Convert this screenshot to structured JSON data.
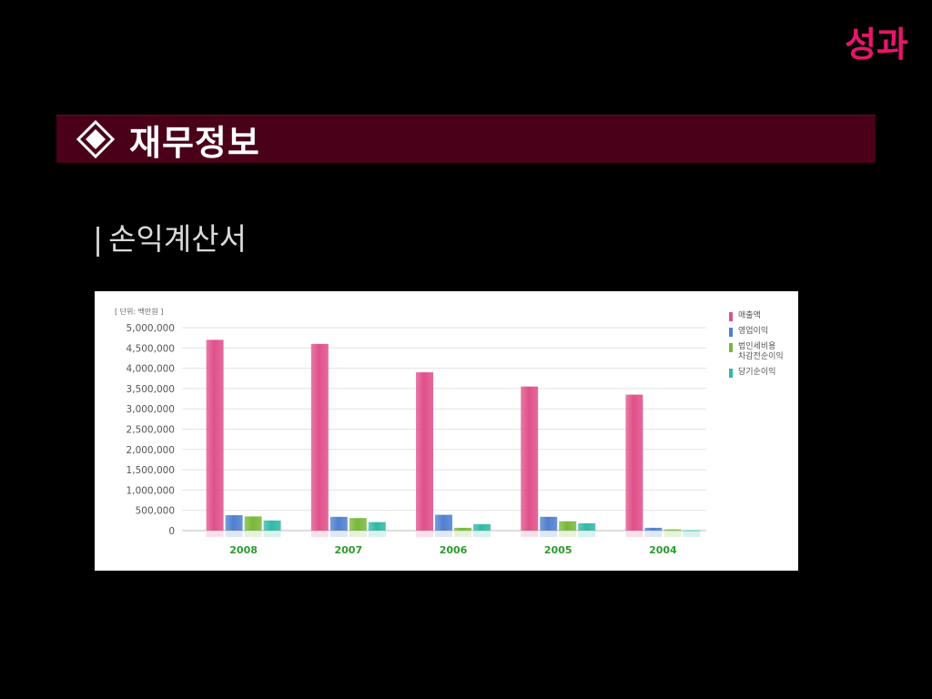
{
  "header": {
    "corner_title": "성과"
  },
  "section": {
    "icon": "diamond-icon",
    "title": "재무정보"
  },
  "subtitle": {
    "pipe": "|",
    "text": "손익계산서"
  },
  "colors": {
    "accent": "#e8166b",
    "section_bar": "#4a0019",
    "category_label": "#2e9a2e",
    "series": [
      "#e0508a",
      "#4f7fd0",
      "#78b83a",
      "#2fb9a6"
    ]
  },
  "chart_data": {
    "type": "bar",
    "unit_note": "[ 단위: 백만원 ]",
    "categories": [
      "2008",
      "2007",
      "2006",
      "2005",
      "2004"
    ],
    "series": [
      {
        "name": "매출액",
        "values": [
          4700000,
          4600000,
          3900000,
          3550000,
          3350000
        ]
      },
      {
        "name": "영업이익",
        "values": [
          380000,
          340000,
          390000,
          340000,
          70000
        ]
      },
      {
        "name": "법인세비용\n차감전순이익",
        "values": [
          350000,
          310000,
          70000,
          230000,
          30000
        ]
      },
      {
        "name": "당기순이익",
        "values": [
          250000,
          210000,
          160000,
          180000,
          10000
        ]
      }
    ],
    "yticks": [
      "0",
      "500,000",
      "1,000,000",
      "1,500,000",
      "2,000,000",
      "2,500,000",
      "3,000,000",
      "3,500,000",
      "4,000,000",
      "4,500,000",
      "5,000,000"
    ],
    "ylim": [
      0,
      5000000
    ],
    "grid": true,
    "legend_position": "right"
  }
}
